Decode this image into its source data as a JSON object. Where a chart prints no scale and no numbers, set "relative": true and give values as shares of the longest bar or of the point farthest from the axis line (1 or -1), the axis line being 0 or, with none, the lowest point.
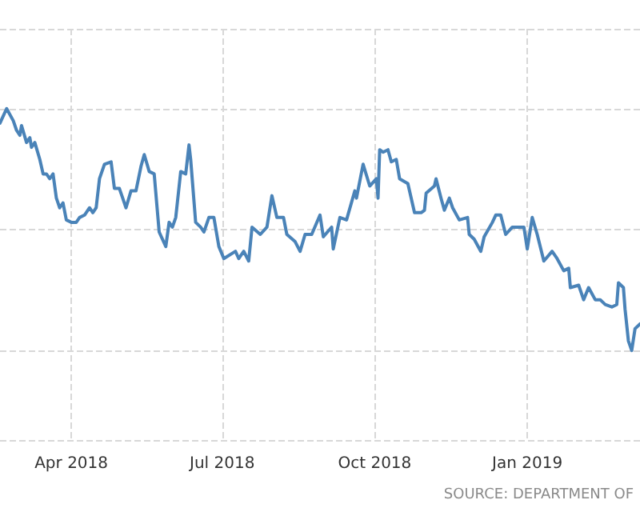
{
  "chart_data": {
    "type": "line",
    "relative": true,
    "grid": true,
    "marker": "none",
    "line_style": "solid",
    "annotations": [
      "SOURCE: DEPARTMENT OF"
    ],
    "xlim": [
      "2018-02-17",
      "2019-03-10"
    ],
    "xticks": [
      {
        "value": "2018-04-01",
        "label": "Apr 2018"
      },
      {
        "value": "2018-07-01",
        "label": "Jul 2018"
      },
      {
        "value": "2018-10-01",
        "label": "Oct 2018"
      },
      {
        "value": "2019-01-01",
        "label": "Jan 2019"
      }
    ],
    "x": [
      "2018-02-17",
      "2018-02-21",
      "2018-02-25",
      "2018-02-27",
      "2018-03-01",
      "2018-03-02",
      "2018-03-05",
      "2018-03-07",
      "2018-03-08",
      "2018-03-10",
      "2018-03-13",
      "2018-03-15",
      "2018-03-17",
      "2018-03-19",
      "2018-03-21",
      "2018-03-23",
      "2018-03-25",
      "2018-03-27",
      "2018-03-29",
      "2018-04-01",
      "2018-04-04",
      "2018-04-06",
      "2018-04-09",
      "2018-04-12",
      "2018-04-14",
      "2018-04-16",
      "2018-04-18",
      "2018-04-21",
      "2018-04-25",
      "2018-04-27",
      "2018-04-30",
      "2018-05-02",
      "2018-05-04",
      "2018-05-07",
      "2018-05-10",
      "2018-05-13",
      "2018-05-15",
      "2018-05-18",
      "2018-05-21",
      "2018-05-24",
      "2018-05-28",
      "2018-05-30",
      "2018-06-01",
      "2018-06-03",
      "2018-06-06",
      "2018-06-09",
      "2018-06-11",
      "2018-06-12",
      "2018-06-15",
      "2018-06-18",
      "2018-06-20",
      "2018-06-23",
      "2018-06-26",
      "2018-06-29",
      "2018-07-02",
      "2018-07-09",
      "2018-07-11",
      "2018-07-14",
      "2018-07-17",
      "2018-07-19",
      "2018-07-24",
      "2018-07-28",
      "2018-07-31",
      "2018-08-03",
      "2018-08-07",
      "2018-08-09",
      "2018-08-14",
      "2018-08-17",
      "2018-08-20",
      "2018-08-24",
      "2018-08-29",
      "2018-08-31",
      "2018-09-05",
      "2018-09-06",
      "2018-09-10",
      "2018-09-14",
      "2018-09-19",
      "2018-09-20",
      "2018-09-24",
      "2018-09-28",
      "2018-10-02",
      "2018-10-03",
      "2018-10-04",
      "2018-10-06",
      "2018-10-09",
      "2018-10-11",
      "2018-10-14",
      "2018-10-16",
      "2018-10-21",
      "2018-10-25",
      "2018-10-29",
      "2018-10-31",
      "2018-11-01",
      "2018-11-06",
      "2018-11-07",
      "2018-11-10",
      "2018-11-12",
      "2018-11-15",
      "2018-11-17",
      "2018-11-21",
      "2018-11-26",
      "2018-11-27",
      "2018-11-30",
      "2018-12-04",
      "2018-12-06",
      "2018-12-11",
      "2018-12-13",
      "2018-12-16",
      "2018-12-19",
      "2018-12-23",
      "2018-12-26",
      "2018-12-30",
      "2019-01-01",
      "2019-01-04",
      "2019-01-07",
      "2019-01-11",
      "2019-01-16",
      "2019-01-19",
      "2019-01-23",
      "2019-01-26",
      "2019-01-27",
      "2019-02-01",
      "2019-02-04",
      "2019-02-07",
      "2019-02-11",
      "2019-02-14",
      "2019-02-17",
      "2019-02-21",
      "2019-02-24",
      "2019-02-25",
      "2019-02-28",
      "2019-03-01",
      "2019-03-03",
      "2019-03-05",
      "2019-03-07",
      "2019-03-10"
    ],
    "series": [
      {
        "color": "#4a83b8",
        "values": [
          0.94,
          1.0,
          0.95,
          0.91,
          0.89,
          0.93,
          0.86,
          0.88,
          0.84,
          0.86,
          0.79,
          0.73,
          0.73,
          0.71,
          0.73,
          0.63,
          0.59,
          0.61,
          0.54,
          0.53,
          0.53,
          0.55,
          0.56,
          0.59,
          0.57,
          0.59,
          0.71,
          0.77,
          0.78,
          0.67,
          0.67,
          0.63,
          0.59,
          0.66,
          0.66,
          0.76,
          0.81,
          0.74,
          0.73,
          0.49,
          0.43,
          0.53,
          0.51,
          0.55,
          0.74,
          0.73,
          0.85,
          0.79,
          0.53,
          0.51,
          0.49,
          0.55,
          0.55,
          0.43,
          0.38,
          0.41,
          0.38,
          0.41,
          0.37,
          0.51,
          0.48,
          0.51,
          0.64,
          0.55,
          0.55,
          0.48,
          0.45,
          0.41,
          0.48,
          0.48,
          0.56,
          0.47,
          0.51,
          0.42,
          0.55,
          0.54,
          0.66,
          0.63,
          0.77,
          0.68,
          0.71,
          0.63,
          0.83,
          0.82,
          0.83,
          0.78,
          0.79,
          0.71,
          0.69,
          0.57,
          0.57,
          0.58,
          0.65,
          0.68,
          0.71,
          0.63,
          0.58,
          0.63,
          0.59,
          0.54,
          0.55,
          0.48,
          0.46,
          0.41,
          0.47,
          0.53,
          0.56,
          0.56,
          0.48,
          0.51,
          0.51,
          0.51,
          0.42,
          0.55,
          0.48,
          0.37,
          0.41,
          0.38,
          0.33,
          0.34,
          0.26,
          0.27,
          0.21,
          0.26,
          0.21,
          0.21,
          0.19,
          0.18,
          0.19,
          0.28,
          0.26,
          0.17,
          0.04,
          0,
          0.09,
          0.11
        ]
      }
    ]
  }
}
